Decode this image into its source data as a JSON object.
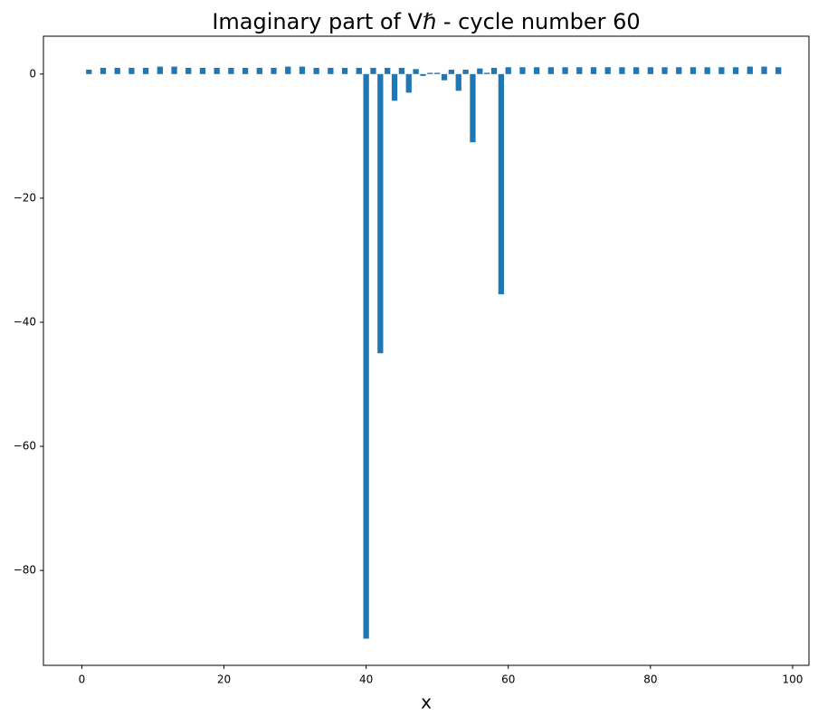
{
  "chart_data": {
    "type": "bar",
    "title": "Imaginary part of Vℏ - cycle number 60",
    "x_label": "x",
    "x": [
      1,
      3,
      5,
      7,
      9,
      11,
      13,
      15,
      17,
      19,
      21,
      23,
      25,
      27,
      29,
      31,
      33,
      35,
      37,
      39,
      40,
      41,
      42,
      43,
      44,
      45,
      46,
      47,
      48,
      49,
      50,
      51,
      52,
      53,
      54,
      55,
      56,
      57,
      58,
      59,
      60,
      62,
      64,
      66,
      68,
      70,
      72,
      74,
      76,
      78,
      80,
      82,
      84,
      86,
      88,
      90,
      92,
      94,
      96,
      98
    ],
    "values": [
      0.7,
      1.0,
      1.0,
      1.0,
      1.0,
      1.2,
      1.2,
      1.0,
      1.0,
      1.0,
      1.0,
      1.0,
      1.0,
      1.0,
      1.2,
      1.2,
      1.0,
      1.0,
      1.0,
      1.0,
      -91,
      1.0,
      -45,
      1.0,
      -4.3,
      1.0,
      -3.0,
      0.8,
      -0.3,
      0.2,
      0.2,
      -1.0,
      0.7,
      -2.7,
      0.7,
      -11,
      0.9,
      0.2,
      1.0,
      -35.5,
      1.1,
      1.1,
      1.1,
      1.1,
      1.1,
      1.1,
      1.1,
      1.1,
      1.1,
      1.1,
      1.1,
      1.1,
      1.1,
      1.1,
      1.1,
      1.1,
      1.1,
      1.2,
      1.2,
      1.1
    ],
    "color": "#1f77b4",
    "xlim": [
      -5.4,
      102.3
    ],
    "xticks": [
      0,
      20,
      40,
      60,
      80,
      100
    ],
    "ylim": [
      -95.3,
      6.1
    ],
    "yticks": [
      {
        "value": -80,
        "label": "−80"
      },
      {
        "value": -60,
        "label": "−60"
      },
      {
        "value": -40,
        "label": "−40"
      },
      {
        "value": -20,
        "label": "−20"
      },
      0
    ],
    "grid": false
  }
}
